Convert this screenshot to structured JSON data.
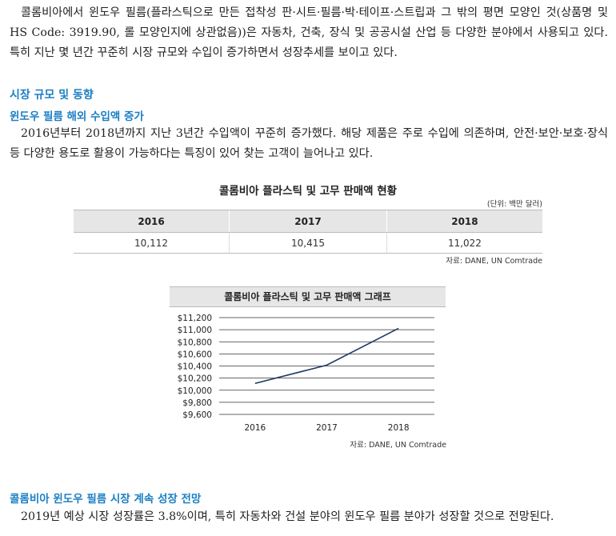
{
  "intro_paragraph": "콜롬비아에서 윈도우 필름(플라스틱으로 만든 접착성 판·시트·필름·박·테이프·스트립과 그 밖의 평면 모양인 것(상품명 및 HS Code: 3919.90, 롤 모양인지에 상관없음))은 자동차, 건축, 장식 및 공공시설 산업 등 다양한 분야에서 사용되고 있다. 특히 지난 몇 년간 꾸준히 시장 규모와 수입이 증가하면서 성장추세를 보이고 있다.",
  "section_market": {
    "title": "시장 규모 및 동향",
    "subtitle": "윈도우 필름 해외 수입액 증가",
    "paragraph": "2016년부터 2018년까지 지난 3년간 수입액이 꾸준히 증가했다. 해당 제품은 주로 수입에 의존하며, 안전·보안·보호·장식 등 다양한 용도로 활용이 가능하다는 특징이 있어 찾는 고객이 늘어나고 있다."
  },
  "table": {
    "title": "콜롬비아 플라스틱 및 고무 판매액 현황",
    "unit": "(단위: 백만 달러)",
    "headers": [
      "2016",
      "2017",
      "2018"
    ],
    "values": [
      "10,112",
      "10,415",
      "11,022"
    ],
    "source": "자료: DANE, UN Comtrade"
  },
  "chart": {
    "title": "콜롬비아 플라스틱 및 고무 판매액 그래프",
    "source": "자료: DANE, UN Comtrade",
    "y_tick_labels": [
      "$11,200",
      "$11,000",
      "$10,800",
      "$10,600",
      "$10,400",
      "$10,200",
      "$10,000",
      "$9,800",
      "$9,600"
    ],
    "line_color": "#1f3864"
  },
  "chart_data": {
    "type": "line",
    "title": "콜롬비아 플라스틱 및 고무 판매액 그래프",
    "categories": [
      "2016",
      "2017",
      "2018"
    ],
    "series": [
      {
        "values": [
          10112,
          10415,
          11022
        ]
      }
    ],
    "ylim": [
      9600,
      11200
    ],
    "y_ticks": [
      11200,
      11000,
      10800,
      10600,
      10400,
      10200,
      10000,
      9800,
      9600
    ],
    "grid": true,
    "xlabel": "",
    "ylabel": ""
  },
  "section_outlook": {
    "subtitle": "콜롬비아 윈도우 필름 시장 계속 성장 전망",
    "paragraph": "2019년 예상 시장 성장률은 3.8%이며, 특히 자동차와 건설 분야의 윈도우 필름 분야가 성장할 것으로 전망된다."
  }
}
